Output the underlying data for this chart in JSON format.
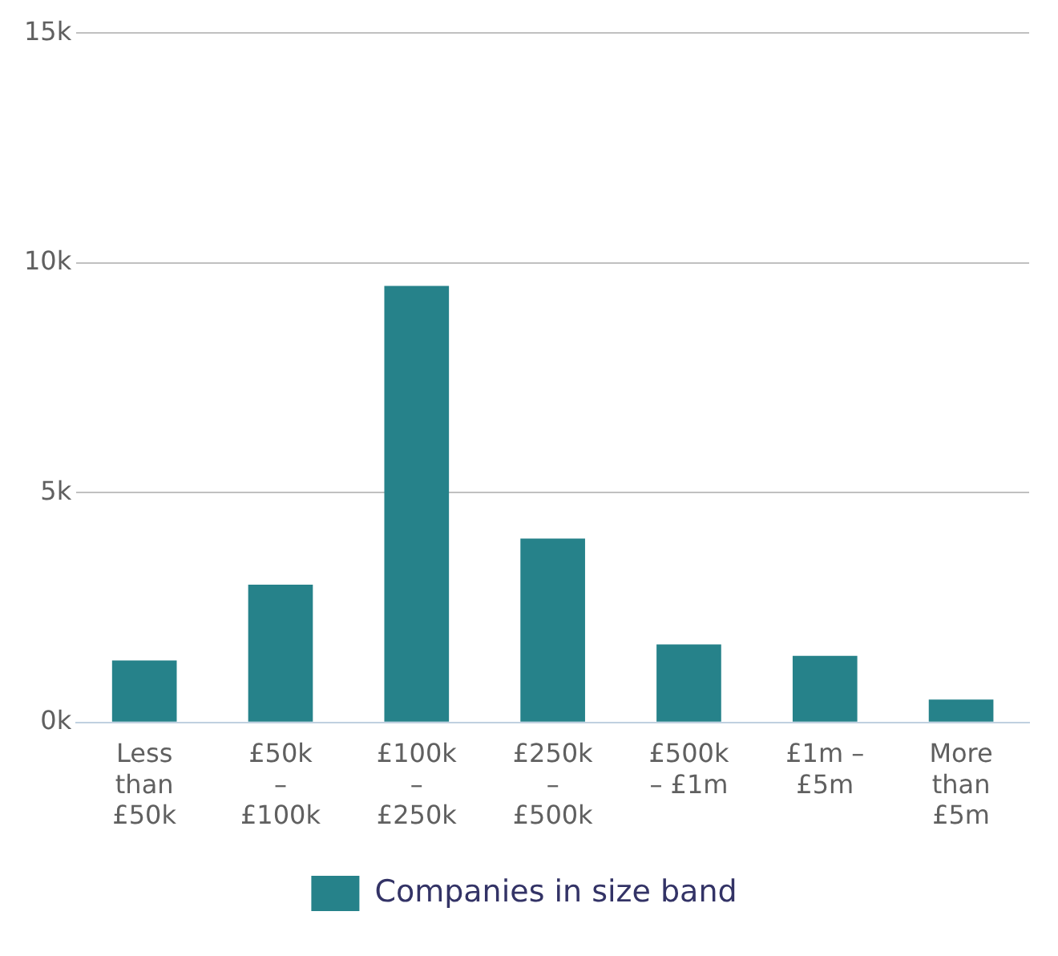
{
  "chart_data": {
    "type": "bar",
    "categories": [
      "Less than £50k",
      "£50k – £100k",
      "£100k – £250k",
      "£250k – £500k",
      "£500k – £1m",
      "£1m – £5m",
      "More than £5m"
    ],
    "series": [
      {
        "name": "Companies in size band",
        "color": "#26828a",
        "values": [
          1350,
          3000,
          9500,
          4000,
          1700,
          1450,
          500
        ]
      }
    ],
    "ylim": [
      0,
      15000
    ],
    "yticks": [
      {
        "value": 0,
        "label": "0k"
      },
      {
        "value": 5000,
        "label": "5k"
      },
      {
        "value": 10000,
        "label": "10k"
      },
      {
        "value": 15000,
        "label": "15k"
      }
    ],
    "grid": "y",
    "legend": "bottom"
  }
}
